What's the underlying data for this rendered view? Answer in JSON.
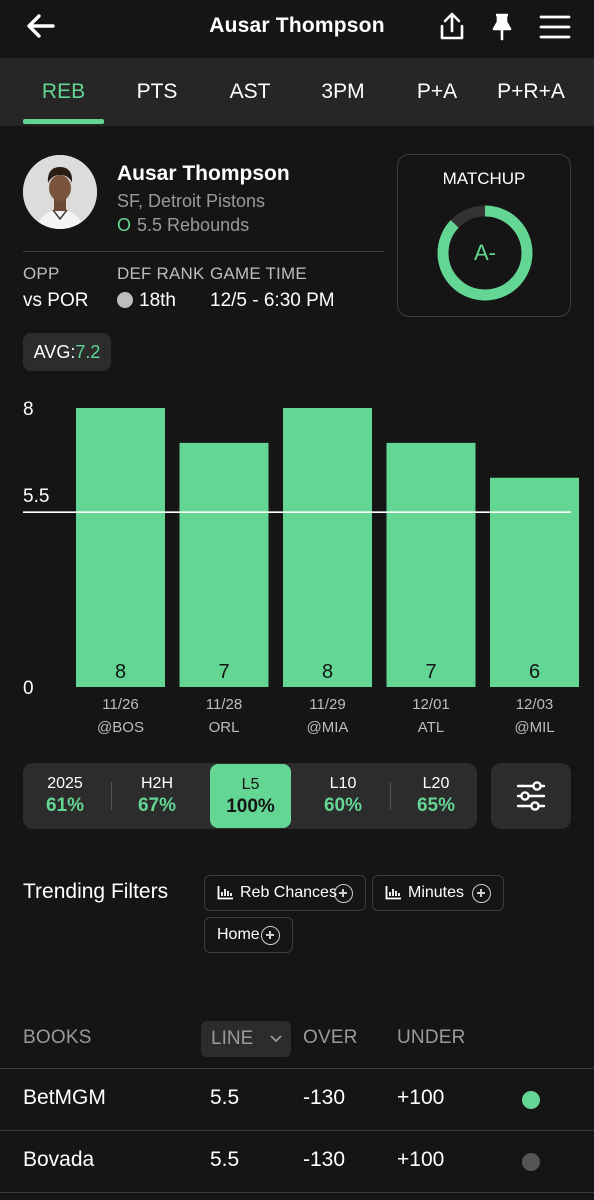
{
  "header": {
    "title": "Ausar Thompson",
    "icons": [
      "back-arrow-icon",
      "share-icon",
      "pin-icon",
      "menu-icon"
    ]
  },
  "tabs": [
    "REB",
    "PTS",
    "AST",
    "3PM",
    "P+A",
    "P+R+A"
  ],
  "active_tab": "REB",
  "player": {
    "name": "Ausar Thompson",
    "team": "SF, Detroit Pistons",
    "ou_marker": "O",
    "line_text": "5.5 Rebounds"
  },
  "info": {
    "opp_label": "OPP",
    "opp_value": "vs POR",
    "def_rank_label": "DEF RANK",
    "def_rank_value": "18th",
    "game_time_label": "GAME TIME",
    "game_time_value": "12/5 - 6:30 PM"
  },
  "matchup": {
    "label": "MATCHUP",
    "grade": "A-",
    "fill_fraction": 0.87
  },
  "average": {
    "label": "AVG:",
    "value": "7.2"
  },
  "chart_data": {
    "type": "bar",
    "categories": [
      "11/26",
      "11/28",
      "11/29",
      "12/01",
      "12/03"
    ],
    "opponents": [
      "@BOS",
      "ORL",
      "@MIA",
      "ATL",
      "@MIL"
    ],
    "values": [
      8,
      7,
      8,
      7,
      6
    ],
    "y_ticks": [
      "8",
      "5.5",
      "0"
    ],
    "ylim": [
      0,
      8
    ],
    "line_value": 5.5,
    "bar_color": "#63d693",
    "grid": false
  },
  "periods": [
    {
      "label": "2025",
      "value": "61%"
    },
    {
      "label": "H2H",
      "value": "67%"
    },
    {
      "label": "L5",
      "value": "100%"
    },
    {
      "label": "L10",
      "value": "60%"
    },
    {
      "label": "L20",
      "value": "65%"
    }
  ],
  "active_period": "L5",
  "trending": {
    "title": "Trending Filters",
    "chips": [
      "Reb Chances",
      "Minutes",
      "Home"
    ]
  },
  "books_table": {
    "headers": {
      "books": "BOOKS",
      "line": "LINE",
      "over": "OVER",
      "under": "UNDER"
    },
    "rows": [
      {
        "book": "BetMGM",
        "line": "5.5",
        "over": "-130",
        "under": "+100",
        "status_color": "#63d693"
      },
      {
        "book": "Bovada",
        "line": "5.5",
        "over": "-130",
        "under": "+100",
        "status_color": "#555555"
      }
    ]
  },
  "colors": {
    "accent": "#63d693",
    "background": "#151515",
    "surface": "#2c2c2c"
  }
}
